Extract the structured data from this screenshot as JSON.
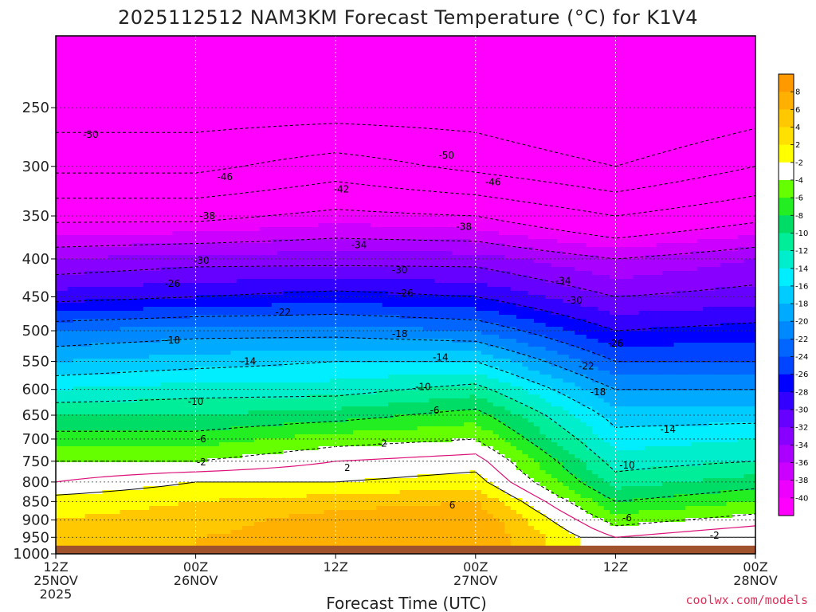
{
  "chart_data": {
    "type": "heatmap",
    "title": "2025112512 NAM3KM Forecast Temperature (°C) for K1V4",
    "xlabel": "Forecast Time (UTC)",
    "ylabel": "",
    "credit": "coolwx.com/models",
    "x_ticks": [
      {
        "hours": 0,
        "lines": [
          "12Z",
          "25NOV",
          "2025"
        ]
      },
      {
        "hours": 12,
        "lines": [
          "00Z",
          "26NOV"
        ]
      },
      {
        "hours": 24,
        "lines": [
          "12Z"
        ]
      },
      {
        "hours": 36,
        "lines": [
          "00Z",
          "27NOV"
        ]
      },
      {
        "hours": 48,
        "lines": [
          "12Z"
        ]
      },
      {
        "hours": 60,
        "lines": [
          "00Z",
          "28NOV"
        ]
      }
    ],
    "x_range_hours": [
      0,
      60
    ],
    "y_ticks": [
      250,
      300,
      350,
      400,
      450,
      500,
      550,
      600,
      650,
      700,
      750,
      800,
      850,
      900,
      950,
      1000
    ],
    "y_range_hPa": [
      200,
      1000
    ],
    "y_scale": "log-pressure (inverted)",
    "surface_pressure_hPa": 975,
    "grid": true,
    "colorbar": {
      "labels": [
        "8",
        "6",
        "4",
        "2",
        "-2",
        "-4",
        "-6",
        "-8",
        "-10",
        "-12",
        "-14",
        "-16",
        "-18",
        "-20",
        "-22",
        "-24",
        "-26",
        "-28",
        "-30",
        "-32",
        "-34",
        "-36",
        "-38",
        "-40"
      ],
      "colors": [
        "#ff9900",
        "#ffb000",
        "#ffc800",
        "#ffe000",
        "#ffff00",
        "#ffffff",
        "#66ff00",
        "#22ee22",
        "#00dd66",
        "#00ee99",
        "#00eecc",
        "#00eeff",
        "#00ccff",
        "#00aaff",
        "#0088ff",
        "#0066ff",
        "#0044ff",
        "#0000ff",
        "#3300ff",
        "#6600ff",
        "#8800ff",
        "#aa00ff",
        "#cc00ff",
        "#ee00ff",
        "#ff00ff"
      ]
    },
    "isotherms_c": [
      2,
      0,
      -2,
      -6,
      -10,
      -14,
      -18,
      -22,
      -26,
      -30,
      -34,
      -38,
      -42,
      -46,
      -50
    ],
    "temperature_profiles": [
      {
        "hours": 0,
        "levels_hPa": [
          250,
          300,
          350,
          400,
          450,
          500,
          550,
          600,
          650,
          700,
          750,
          800,
          850,
          900,
          950
        ],
        "temps_c": [
          -52,
          -47,
          -39,
          -32,
          -27,
          -20,
          -16,
          -12,
          -8,
          -5,
          -2,
          0,
          3,
          4,
          4
        ]
      },
      {
        "hours": 12,
        "levels_hPa": [
          250,
          300,
          350,
          400,
          450,
          500,
          550,
          600,
          650,
          700,
          750,
          800,
          850,
          900,
          950
        ],
        "temps_c": [
          -52,
          -47,
          -39,
          -31,
          -26,
          -19,
          -15,
          -11,
          -8,
          -5,
          -2,
          2,
          4,
          5,
          6
        ]
      },
      {
        "hours": 24,
        "levels_hPa": [
          250,
          300,
          350,
          400,
          450,
          500,
          550,
          600,
          650,
          700,
          750,
          800,
          850,
          900,
          950
        ],
        "temps_c": [
          -52,
          -44,
          -37,
          -31,
          -25,
          -19,
          -14,
          -11,
          -7,
          -3,
          0,
          2,
          5,
          7,
          7
        ]
      },
      {
        "hours": 36,
        "levels_hPa": [
          250,
          300,
          350,
          400,
          450,
          500,
          550,
          600,
          650,
          700,
          750,
          800,
          850,
          900,
          950
        ],
        "temps_c": [
          -52,
          -47,
          -38,
          -31,
          -26,
          -20,
          -14,
          -9,
          -5,
          -2,
          1,
          3,
          6,
          8,
          8
        ]
      },
      {
        "hours": 48,
        "levels_hPa": [
          250,
          300,
          350,
          400,
          450,
          500,
          550,
          600,
          650,
          700,
          750,
          800,
          850,
          900,
          950
        ],
        "temps_c": [
          -55,
          -50,
          -42,
          -34,
          -30,
          -26,
          -22,
          -18,
          -15,
          -13,
          -11,
          -9,
          -6,
          -3,
          0
        ]
      },
      {
        "hours": 60,
        "levels_hPa": [
          250,
          300,
          350,
          400,
          450,
          500,
          550,
          600,
          650,
          700,
          750,
          800,
          850,
          900,
          950
        ],
        "temps_c": [
          -52,
          -46,
          -39,
          -32,
          -29,
          -25,
          -22,
          -18,
          -15,
          -12,
          -10,
          -7,
          -4,
          -1,
          2
        ]
      }
    ],
    "contour_labels": [
      {
        "text": "-50",
        "hours": 3,
        "hPa": 272
      },
      {
        "text": "-46",
        "hours": 14.5,
        "hPa": 310
      },
      {
        "text": "-42",
        "hours": 24.5,
        "hPa": 322
      },
      {
        "text": "-50",
        "hours": 33.5,
        "hPa": 290
      },
      {
        "text": "-46",
        "hours": 37.5,
        "hPa": 315
      },
      {
        "text": "-38",
        "hours": 13,
        "hPa": 350
      },
      {
        "text": "-38",
        "hours": 35,
        "hPa": 362
      },
      {
        "text": "-34",
        "hours": 26,
        "hPa": 383
      },
      {
        "text": "-34",
        "hours": 43.5,
        "hPa": 428
      },
      {
        "text": "-30",
        "hours": 12.5,
        "hPa": 402
      },
      {
        "text": "-30",
        "hours": 29.5,
        "hPa": 414
      },
      {
        "text": "-30",
        "hours": 44.5,
        "hPa": 455
      },
      {
        "text": "-26",
        "hours": 10,
        "hPa": 432
      },
      {
        "text": "-26",
        "hours": 30,
        "hPa": 445
      },
      {
        "text": "-26",
        "hours": 48,
        "hPa": 520
      },
      {
        "text": "-22",
        "hours": 19.5,
        "hPa": 472
      },
      {
        "text": "-22",
        "hours": 45.5,
        "hPa": 558
      },
      {
        "text": "-18",
        "hours": 10,
        "hPa": 515
      },
      {
        "text": "-18",
        "hours": 29.5,
        "hPa": 505
      },
      {
        "text": "-18",
        "hours": 46.5,
        "hPa": 605
      },
      {
        "text": "-14",
        "hours": 16.5,
        "hPa": 550
      },
      {
        "text": "-14",
        "hours": 33,
        "hPa": 543
      },
      {
        "text": "-14",
        "hours": 52.5,
        "hPa": 680
      },
      {
        "text": "-10",
        "hours": 12,
        "hPa": 623
      },
      {
        "text": "-10",
        "hours": 31.5,
        "hPa": 595
      },
      {
        "text": "-10",
        "hours": 49,
        "hPa": 760
      },
      {
        "text": "-6",
        "hours": 12.5,
        "hPa": 700
      },
      {
        "text": "-6",
        "hours": 32.5,
        "hPa": 640
      },
      {
        "text": "-6",
        "hours": 49,
        "hPa": 895
      },
      {
        "text": "-2",
        "hours": 12.5,
        "hPa": 752
      },
      {
        "text": "-2",
        "hours": 28,
        "hPa": 710
      },
      {
        "text": "-2",
        "hours": 56.5,
        "hPa": 945
      },
      {
        "text": "2",
        "hours": 25,
        "hPa": 765
      },
      {
        "text": "6",
        "hours": 34,
        "hPa": 860
      }
    ]
  }
}
